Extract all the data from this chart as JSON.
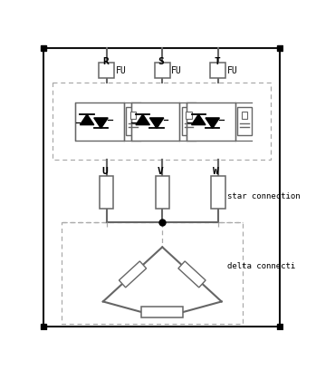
{
  "bg_color": "#ffffff",
  "line_color": "#666666",
  "dashed_color": "#aaaaaa",
  "border_color": "#111111",
  "labels_top": [
    "R",
    "S",
    "T"
  ],
  "labels_mid": [
    "U",
    "V",
    "W"
  ],
  "text_star": "star connection",
  "text_delta": "delta connecti",
  "fu_label": "FU",
  "fig_width": 3.49,
  "fig_height": 4.09
}
